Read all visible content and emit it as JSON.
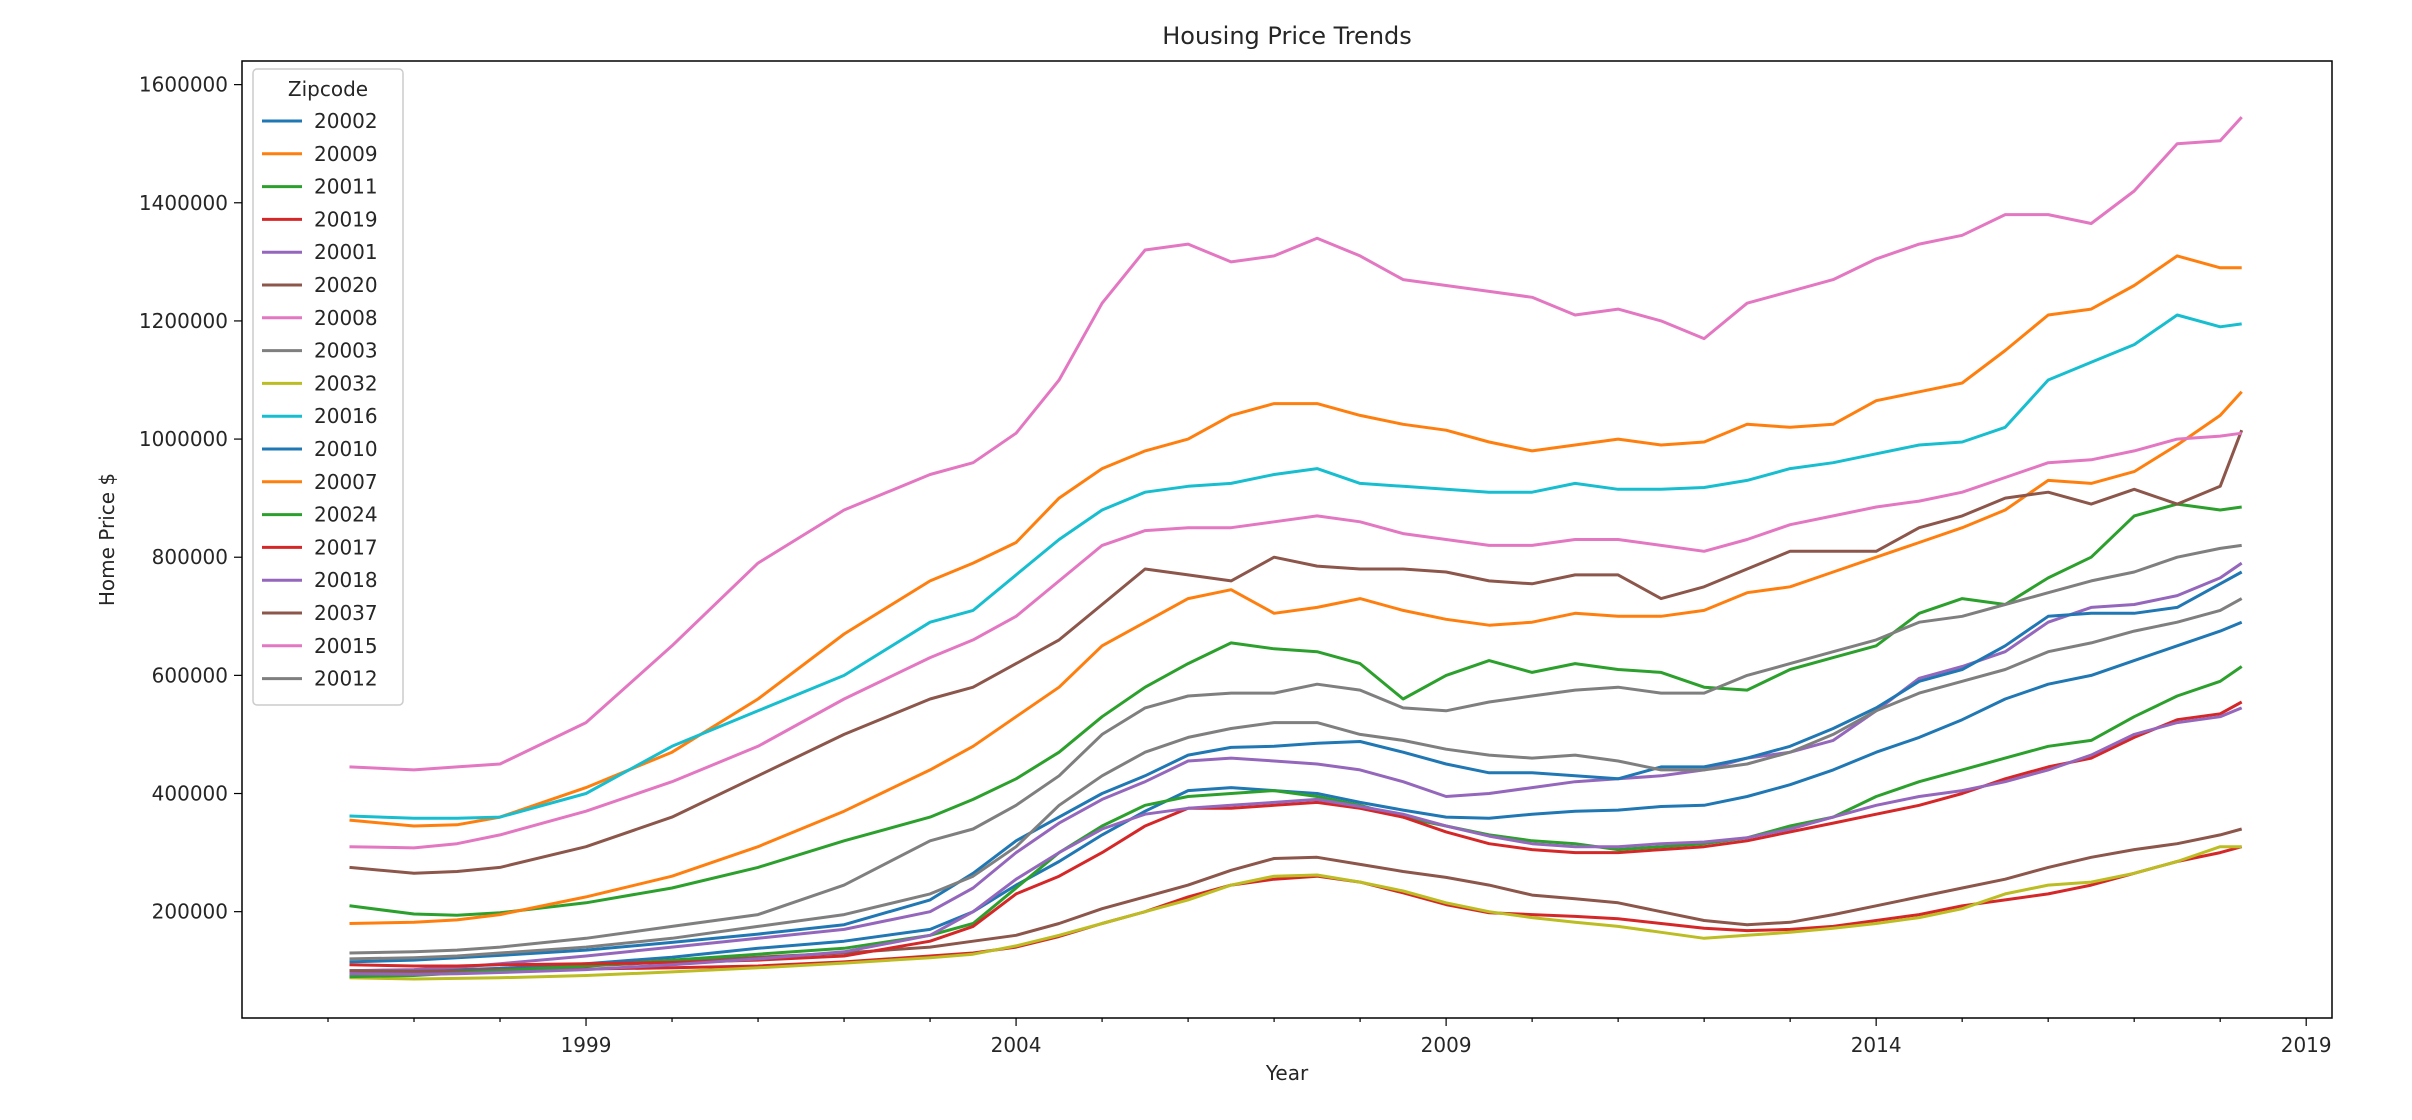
{
  "chart_data": {
    "type": "line",
    "title": "Housing Price Trends",
    "xlabel": "Year",
    "ylabel": "Home Price $",
    "xlim": [
      1995.0,
      2019.3
    ],
    "ylim": [
      20000,
      1640000
    ],
    "xticks": [
      1999,
      2004,
      2009,
      2014,
      2019
    ],
    "yticks": [
      200000,
      400000,
      600000,
      800000,
      1000000,
      1200000,
      1400000,
      1600000
    ],
    "grid": false,
    "legend": {
      "title": "Zipcode",
      "placement": "top-left"
    },
    "x": [
      1996.25,
      1997,
      1997.5,
      1998,
      1999,
      2000,
      2001,
      2002,
      2003,
      2003.5,
      2004,
      2004.5,
      2005,
      2005.5,
      2006,
      2006.5,
      2007,
      2007.5,
      2008,
      2008.5,
      2009,
      2009.5,
      2010,
      2010.5,
      2011,
      2011.5,
      2012,
      2012.5,
      2013,
      2013.5,
      2014,
      2014.5,
      2015,
      2015.5,
      2016,
      2016.5,
      2017,
      2017.5,
      2018,
      2018.25
    ],
    "series": [
      {
        "name": "20002",
        "color": "#1f77b4",
        "values": [
          100000,
          101000,
          102000,
          104000,
          112000,
          123000,
          138000,
          150000,
          170000,
          200000,
          245000,
          285000,
          330000,
          370000,
          405000,
          410000,
          405000,
          400000,
          385000,
          372000,
          360000,
          358000,
          365000,
          370000,
          372000,
          378000,
          380000,
          395000,
          415000,
          440000,
          470000,
          495000,
          525000,
          560000,
          585000,
          600000,
          625000,
          650000,
          675000,
          690000
        ]
      },
      {
        "name": "20009",
        "color": "#ff7f0e",
        "values": [
          355000,
          345000,
          347000,
          360000,
          410000,
          470000,
          560000,
          670000,
          760000,
          790000,
          825000,
          900000,
          950000,
          980000,
          1000000,
          1040000,
          1060000,
          1060000,
          1040000,
          1025000,
          1015000,
          995000,
          980000,
          990000,
          1000000,
          990000,
          995000,
          1025000,
          1020000,
          1025000,
          1065000,
          1080000,
          1095000,
          1150000,
          1210000,
          1220000,
          1260000,
          1310000,
          1290000,
          1290000
        ]
      },
      {
        "name": "20011",
        "color": "#2ca02c",
        "values": [
          210000,
          196000,
          194000,
          198000,
          215000,
          240000,
          275000,
          320000,
          360000,
          390000,
          425000,
          470000,
          530000,
          580000,
          620000,
          655000,
          645000,
          640000,
          620000,
          560000,
          600000,
          625000,
          605000,
          620000,
          610000,
          605000,
          580000,
          575000,
          610000,
          630000,
          650000,
          705000,
          730000,
          720000,
          765000,
          800000,
          870000,
          890000,
          880000,
          885000
        ]
      },
      {
        "name": "20019",
        "color": "#d62728",
        "values": [
          95000,
          97000,
          98000,
          100000,
          103000,
          105000,
          108000,
          115000,
          125000,
          130000,
          140000,
          158000,
          180000,
          200000,
          225000,
          245000,
          255000,
          260000,
          250000,
          232000,
          212000,
          198000,
          195000,
          192000,
          188000,
          180000,
          172000,
          168000,
          170000,
          175000,
          185000,
          195000,
          210000,
          220000,
          230000,
          245000,
          265000,
          285000,
          300000,
          310000
        ]
      },
      {
        "name": "20001",
        "color": "#9467bd",
        "values": [
          100000,
          102000,
          106000,
          112000,
          125000,
          140000,
          155000,
          170000,
          200000,
          240000,
          300000,
          350000,
          390000,
          420000,
          455000,
          460000,
          455000,
          450000,
          440000,
          420000,
          395000,
          400000,
          410000,
          420000,
          425000,
          430000,
          440000,
          460000,
          470000,
          490000,
          540000,
          595000,
          615000,
          640000,
          690000,
          715000,
          720000,
          735000,
          765000,
          790000
        ]
      },
      {
        "name": "20020",
        "color": "#8c564b",
        "values": [
          100000,
          99000,
          100000,
          102000,
          108000,
          115000,
          123000,
          130000,
          140000,
          150000,
          160000,
          180000,
          205000,
          225000,
          245000,
          270000,
          290000,
          292000,
          280000,
          268000,
          258000,
          245000,
          228000,
          222000,
          215000,
          200000,
          185000,
          178000,
          182000,
          195000,
          210000,
          225000,
          240000,
          255000,
          275000,
          292000,
          305000,
          315000,
          330000,
          340000
        ]
      },
      {
        "name": "20008",
        "color": "#e377c2",
        "values": [
          445000,
          440000,
          445000,
          450000,
          520000,
          650000,
          790000,
          880000,
          940000,
          960000,
          1010000,
          1100000,
          1230000,
          1320000,
          1330000,
          1300000,
          1310000,
          1340000,
          1310000,
          1270000,
          1260000,
          1250000,
          1240000,
          1210000,
          1220000,
          1200000,
          1170000,
          1230000,
          1250000,
          1270000,
          1305000,
          1330000,
          1345000,
          1380000,
          1380000,
          1365000,
          1420000,
          1500000,
          1505000,
          1545000
        ]
      },
      {
        "name": "20003",
        "color": "#7f7f7f",
        "values": [
          130000,
          132000,
          135000,
          140000,
          155000,
          175000,
          195000,
          245000,
          320000,
          340000,
          380000,
          430000,
          500000,
          545000,
          565000,
          570000,
          570000,
          585000,
          575000,
          545000,
          540000,
          555000,
          565000,
          575000,
          580000,
          570000,
          570000,
          600000,
          620000,
          640000,
          660000,
          690000,
          700000,
          720000,
          740000,
          760000,
          775000,
          800000,
          815000,
          820000
        ]
      },
      {
        "name": "20032",
        "color": "#bcbd22",
        "values": [
          88000,
          86000,
          87000,
          88000,
          92000,
          98000,
          105000,
          113000,
          122000,
          128000,
          142000,
          160000,
          180000,
          200000,
          220000,
          245000,
          260000,
          262000,
          250000,
          235000,
          215000,
          200000,
          190000,
          182000,
          175000,
          165000,
          155000,
          160000,
          165000,
          172000,
          180000,
          190000,
          205000,
          230000,
          245000,
          250000,
          265000,
          285000,
          310000,
          310000
        ]
      },
      {
        "name": "20016",
        "color": "#17becf",
        "values": [
          362000,
          358000,
          358000,
          360000,
          400000,
          480000,
          540000,
          600000,
          690000,
          710000,
          770000,
          830000,
          880000,
          910000,
          920000,
          925000,
          940000,
          950000,
          925000,
          920000,
          915000,
          910000,
          910000,
          925000,
          915000,
          915000,
          918000,
          930000,
          950000,
          960000,
          975000,
          990000,
          995000,
          1020000,
          1100000,
          1130000,
          1160000,
          1210000,
          1190000,
          1195000
        ]
      },
      {
        "name": "20010",
        "color": "#1f77b4",
        "values": [
          115000,
          118000,
          122000,
          126000,
          135000,
          148000,
          162000,
          178000,
          220000,
          265000,
          320000,
          360000,
          400000,
          430000,
          465000,
          478000,
          480000,
          485000,
          488000,
          470000,
          450000,
          435000,
          435000,
          430000,
          425000,
          445000,
          445000,
          460000,
          480000,
          510000,
          545000,
          590000,
          610000,
          650000,
          700000,
          705000,
          705000,
          715000,
          755000,
          775000
        ]
      },
      {
        "name": "20007",
        "color": "#ff7f0e",
        "values": [
          180000,
          182000,
          186000,
          195000,
          225000,
          260000,
          310000,
          370000,
          440000,
          480000,
          530000,
          580000,
          650000,
          690000,
          730000,
          745000,
          705000,
          715000,
          730000,
          710000,
          695000,
          685000,
          690000,
          705000,
          700000,
          700000,
          710000,
          740000,
          750000,
          775000,
          800000,
          825000,
          850000,
          880000,
          930000,
          925000,
          945000,
          990000,
          1040000,
          1080000
        ]
      },
      {
        "name": "20024",
        "color": "#2ca02c",
        "values": [
          90000,
          92000,
          96000,
          100000,
          108000,
          118000,
          128000,
          138000,
          160000,
          180000,
          240000,
          300000,
          345000,
          380000,
          395000,
          400000,
          405000,
          395000,
          380000,
          360000,
          345000,
          330000,
          320000,
          315000,
          305000,
          310000,
          315000,
          325000,
          345000,
          360000,
          395000,
          420000,
          440000,
          460000,
          480000,
          490000,
          530000,
          565000,
          590000,
          615000
        ]
      },
      {
        "name": "20017",
        "color": "#d62728",
        "values": [
          110000,
          108000,
          108000,
          110000,
          112000,
          114000,
          118000,
          125000,
          150000,
          175000,
          230000,
          260000,
          300000,
          345000,
          375000,
          375000,
          380000,
          385000,
          375000,
          360000,
          335000,
          315000,
          305000,
          300000,
          300000,
          305000,
          310000,
          320000,
          335000,
          350000,
          365000,
          380000,
          400000,
          425000,
          445000,
          460000,
          495000,
          525000,
          535000,
          555000
        ]
      },
      {
        "name": "20018",
        "color": "#9467bd",
        "values": [
          95000,
          94000,
          95000,
          97000,
          102000,
          110000,
          120000,
          132000,
          160000,
          200000,
          255000,
          300000,
          340000,
          365000,
          375000,
          380000,
          385000,
          390000,
          378000,
          365000,
          345000,
          328000,
          315000,
          310000,
          310000,
          315000,
          318000,
          325000,
          340000,
          360000,
          380000,
          395000,
          405000,
          420000,
          440000,
          465000,
          500000,
          520000,
          530000,
          545000
        ]
      },
      {
        "name": "20037",
        "color": "#8c564b",
        "values": [
          275000,
          265000,
          268000,
          275000,
          310000,
          360000,
          430000,
          500000,
          560000,
          580000,
          620000,
          660000,
          720000,
          780000,
          770000,
          760000,
          800000,
          785000,
          780000,
          780000,
          775000,
          760000,
          755000,
          770000,
          770000,
          730000,
          750000,
          780000,
          810000,
          810000,
          810000,
          850000,
          870000,
          900000,
          910000,
          890000,
          915000,
          890000,
          920000,
          1015000
        ]
      },
      {
        "name": "20015",
        "color": "#e377c2",
        "values": [
          310000,
          308000,
          315000,
          330000,
          370000,
          420000,
          480000,
          560000,
          630000,
          660000,
          700000,
          760000,
          820000,
          845000,
          850000,
          850000,
          860000,
          870000,
          860000,
          840000,
          830000,
          820000,
          820000,
          830000,
          830000,
          820000,
          810000,
          830000,
          855000,
          870000,
          885000,
          895000,
          910000,
          935000,
          960000,
          965000,
          980000,
          1000000,
          1005000,
          1010000
        ]
      },
      {
        "name": "20012",
        "color": "#7f7f7f",
        "values": [
          120000,
          122000,
          125000,
          130000,
          140000,
          155000,
          175000,
          195000,
          230000,
          260000,
          310000,
          380000,
          430000,
          470000,
          495000,
          510000,
          520000,
          520000,
          500000,
          490000,
          475000,
          465000,
          460000,
          465000,
          455000,
          440000,
          440000,
          450000,
          470000,
          500000,
          540000,
          570000,
          590000,
          610000,
          640000,
          655000,
          675000,
          690000,
          710000,
          730000
        ]
      }
    ]
  }
}
